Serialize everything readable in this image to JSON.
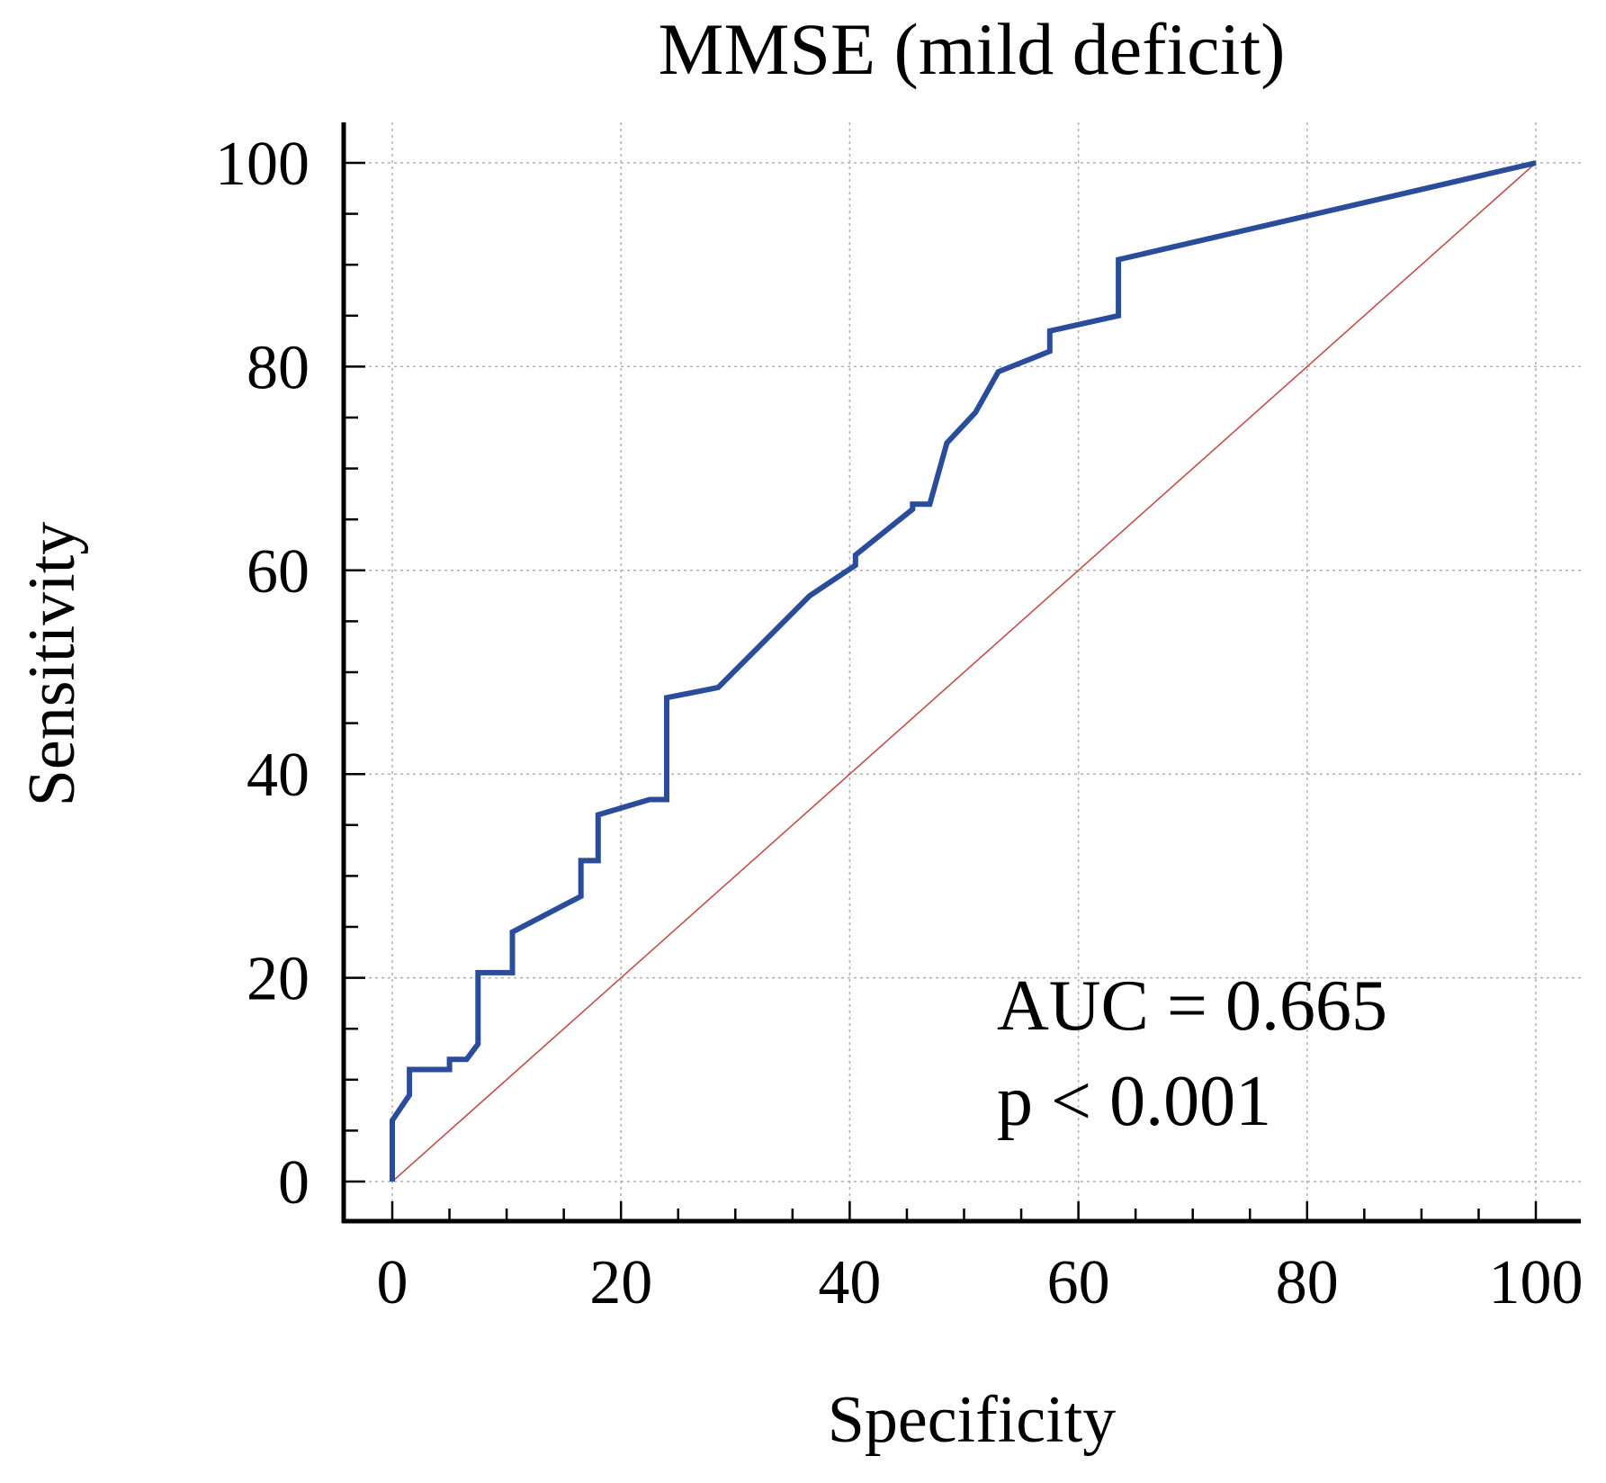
{
  "chart_data": {
    "type": "line",
    "title": "MMSE (mild deficit)",
    "xlabel": "Specificity",
    "ylabel": "Sensitivity",
    "xlim": [
      0,
      100
    ],
    "ylim": [
      0,
      100
    ],
    "xticks": [
      "0",
      "20",
      "40",
      "60",
      "80",
      "100"
    ],
    "yticks": [
      "0",
      "20",
      "40",
      "60",
      "80",
      "100"
    ],
    "grid": true,
    "annotations": [
      "AUC = 0.665",
      "p < 0.001"
    ],
    "colors": {
      "roc": "#2a4d9b",
      "reference": "#c0504d",
      "grid": "#b0b0b0"
    },
    "series": [
      {
        "x": [
          0,
          0,
          1.5,
          1.5,
          5,
          5,
          6.5,
          7.5,
          7.5,
          10.5,
          10.5,
          16.5,
          16.5,
          18,
          18,
          22.5,
          24,
          24,
          28.5,
          36.5,
          40.5,
          40.5,
          45.5,
          45.5,
          47,
          48.5,
          51,
          53,
          57.5,
          57.5,
          63.5,
          63.5,
          100
        ],
        "y": [
          0,
          6,
          8.5,
          11,
          11,
          12,
          12,
          13.5,
          20.5,
          20.5,
          24.5,
          28,
          31.5,
          31.5,
          36,
          37.5,
          37.5,
          47.5,
          48.5,
          57.5,
          60.5,
          61.5,
          66,
          66.5,
          66.5,
          72.5,
          75.5,
          79.5,
          81.5,
          83.5,
          85,
          90.5,
          100
        ]
      },
      {
        "x": [
          0,
          100
        ],
        "y": [
          0,
          100
        ]
      }
    ]
  }
}
